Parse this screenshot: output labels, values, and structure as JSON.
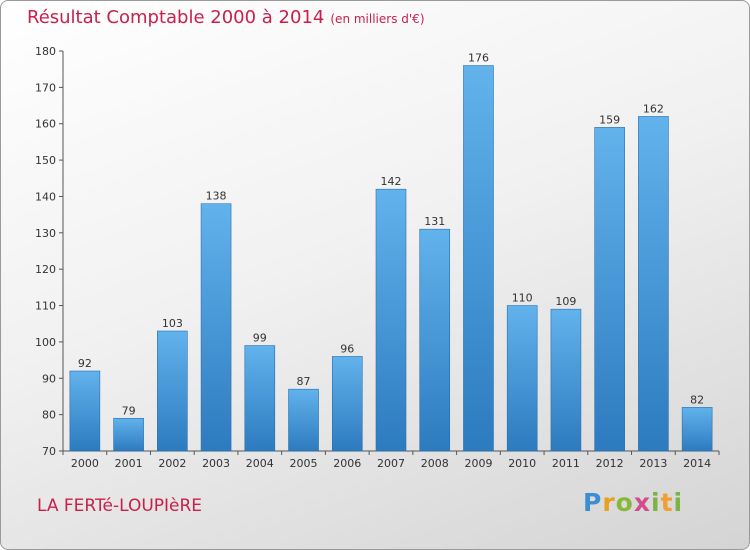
{
  "header": {
    "title": "Résultat Comptable 2000 à 2014",
    "subtitle": "(en milliers d'€)"
  },
  "footer": {
    "commune": "LA FERTé-LOUPIèRE",
    "logo_letters": [
      "P",
      "r",
      "o",
      "x",
      "i",
      "t",
      "i"
    ]
  },
  "colors": {
    "bar_top": "#62b2ec",
    "bar_bottom": "#2d7bbf",
    "title": "#c8204c"
  },
  "chart_data": {
    "type": "bar",
    "title": "Résultat Comptable 2000 à 2014",
    "subtitle": "(en milliers d'€)",
    "categories": [
      "2000",
      "2001",
      "2002",
      "2003",
      "2004",
      "2005",
      "2006",
      "2007",
      "2008",
      "2009",
      "2010",
      "2011",
      "2012",
      "2013",
      "2014"
    ],
    "values": [
      92,
      79,
      103,
      138,
      99,
      87,
      96,
      142,
      131,
      176,
      110,
      109,
      159,
      162,
      82
    ],
    "ylim": [
      70,
      180
    ],
    "yticks": [
      70,
      80,
      90,
      100,
      110,
      120,
      130,
      140,
      150,
      160,
      170,
      180
    ],
    "grid": false,
    "legend": "none"
  }
}
